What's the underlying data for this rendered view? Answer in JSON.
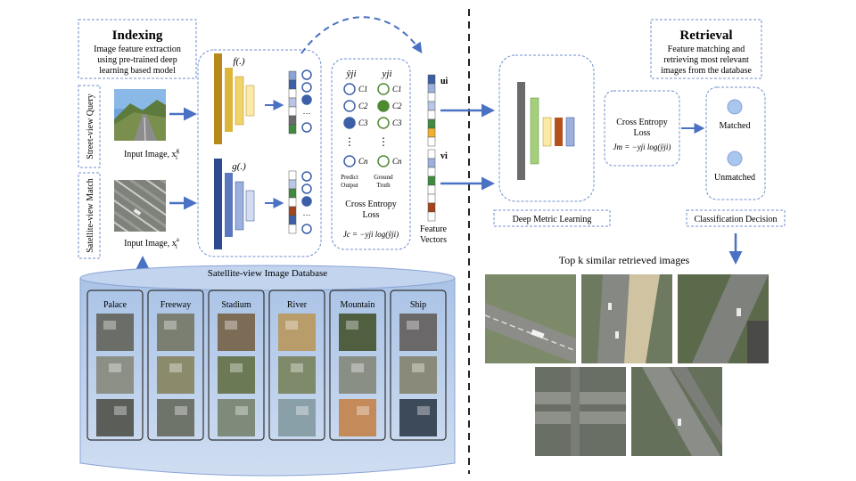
{
  "indexing": {
    "title": "Indexing",
    "desc": [
      "Image feature extraction",
      "using pre-trained deep",
      "learning based model"
    ],
    "street_label": "Street-view Query",
    "satellite_label": "Satellite-view Match",
    "input_street": "Input Image, x",
    "input_street_sup": "g",
    "input_street_sub": "i",
    "input_sat": "Input Image, x",
    "input_sat_sup": "a",
    "input_sat_sub": "i",
    "f_label": "f(.)",
    "g_label": "g(.)",
    "yhat": "ŷji",
    "y": "yji",
    "classes": [
      "C1",
      "C2",
      "C3",
      "Cn"
    ],
    "predict_output": [
      "Predict",
      "Output"
    ],
    "ground_truth": [
      "Ground",
      "Truth"
    ],
    "loss_title": [
      "Cross Entropy",
      "Loss"
    ],
    "loss_formula": "Jc = −yji log(ŷji)",
    "u_label": "ui",
    "v_label": "vi",
    "feature_vectors": [
      "Feature",
      "Vectors"
    ]
  },
  "database": {
    "title": "Satellite-view Image Database",
    "categories": [
      "Palace",
      "Freeway",
      "Stadium",
      "River",
      "Mountain",
      "Ship"
    ]
  },
  "retrieval": {
    "title": "Retrieval",
    "desc": [
      "Feature matching and",
      "retrieving most relevant",
      "images from the database"
    ],
    "dml_label": "Deep Metric Learning",
    "loss_title": [
      "Cross Entropy",
      "Loss"
    ],
    "loss_formula": "Jm = −yji log(ŷji)",
    "matched": "Matched",
    "unmatched": "Unmatched",
    "decision_label": "Classification Decision",
    "topk_label": "Top k similar retrieved images"
  },
  "colors": {
    "f_bars": [
      "#b58a1a",
      "#dcb43a",
      "#f0d36a",
      "#fbe9a8"
    ],
    "g_bars": [
      "#2c4b8e",
      "#5b78be",
      "#9bb0dc",
      "#d3ddf1"
    ],
    "arrow": "#4a72c4",
    "dashed": "#6f8fcf",
    "db": "#c9d9ef"
  }
}
